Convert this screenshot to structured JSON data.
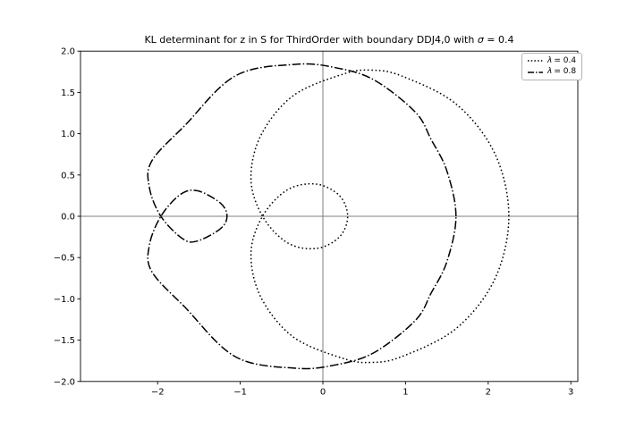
{
  "chart_data": {
    "type": "line",
    "title": "KL determinant for z in S for ThirdOrder with boundary DDJ4,0 with σ = 0.4",
    "title_parts": [
      {
        "text": "KL determinant for z in S for ThirdOrder with boundary DDJ4,0 with ",
        "italic": false
      },
      {
        "text": "σ",
        "italic": true
      },
      {
        "text": " = 0.4",
        "italic": false
      }
    ],
    "xlabel": "",
    "ylabel": "",
    "xlim": [
      -2.93,
      3.1
    ],
    "ylim": [
      -2.0,
      2.0
    ],
    "aspect": "equal",
    "grid": false,
    "zero_lines": {
      "horizontal": true,
      "vertical": true,
      "color": "#7f7f7f"
    },
    "x_ticks": [
      {
        "v": -2,
        "label": "−2"
      },
      {
        "v": -1,
        "label": "−1"
      },
      {
        "v": 0,
        "label": "0"
      },
      {
        "v": 1,
        "label": "1"
      },
      {
        "v": 2,
        "label": "2"
      },
      {
        "v": 3,
        "label": "3"
      }
    ],
    "y_ticks": [
      {
        "v": -2.0,
        "label": "−2.0"
      },
      {
        "v": -1.5,
        "label": "−1.5"
      },
      {
        "v": -1.0,
        "label": "−1.0"
      },
      {
        "v": -0.5,
        "label": "−0.5"
      },
      {
        "v": 0.0,
        "label": "0.0"
      },
      {
        "v": 0.5,
        "label": "0.5"
      },
      {
        "v": 1.0,
        "label": "1.0"
      },
      {
        "v": 1.5,
        "label": "1.5"
      },
      {
        "v": 2.0,
        "label": "2.0"
      }
    ],
    "legend": {
      "location": "upper right",
      "entries": [
        {
          "symbol": "λ",
          "value": "= 0.4",
          "linestyle": "dotted"
        },
        {
          "symbol": "λ",
          "value": "= 0.8",
          "linestyle": "dashdot"
        }
      ]
    },
    "series": [
      {
        "name": "lambda = 0.4",
        "linestyle": "dotted",
        "color": "#000000",
        "closed": true,
        "points": [
          [
            2.25,
            0
          ],
          [
            2.08,
            0.76
          ],
          [
            1.61,
            1.36
          ],
          [
            0.95,
            1.7
          ],
          [
            0.58,
            1.77
          ],
          [
            0.24,
            1.72
          ],
          [
            -0.36,
            1.46
          ],
          [
            -0.75,
            0.98
          ],
          [
            -0.87,
            0.45
          ],
          [
            -0.73,
            0
          ],
          [
            -0.43,
            -0.32
          ],
          [
            -0.08,
            -0.39
          ],
          [
            0.2,
            -0.25
          ],
          [
            0.3,
            0
          ],
          [
            0.2,
            0.25
          ],
          [
            -0.08,
            0.39
          ],
          [
            -0.43,
            0.32
          ],
          [
            -0.73,
            0
          ],
          [
            -0.87,
            -0.45
          ],
          [
            -0.75,
            -0.98
          ],
          [
            -0.36,
            -1.46
          ],
          [
            0.24,
            -1.72
          ],
          [
            0.58,
            -1.77
          ],
          [
            0.95,
            -1.7
          ],
          [
            1.61,
            -1.36
          ],
          [
            2.08,
            -0.76
          ]
        ]
      },
      {
        "name": "lambda = 0.8",
        "linestyle": "dashdot",
        "color": "#000000",
        "closed": true,
        "points": [
          [
            1.61,
            0
          ],
          [
            1.5,
            0.55
          ],
          [
            1.31,
            0.93
          ],
          [
            1.12,
            1.26
          ],
          [
            0.62,
            1.65
          ],
          [
            0.15,
            1.8
          ],
          [
            -0.33,
            1.84
          ],
          [
            -1.06,
            1.7
          ],
          [
            -1.67,
            1.1
          ],
          [
            -2.07,
            0.67
          ],
          [
            -2.1,
            0.35
          ],
          [
            -1.96,
            0
          ],
          [
            -1.7,
            -0.27
          ],
          [
            -1.52,
            -0.3
          ],
          [
            -1.24,
            -0.15
          ],
          [
            -1.16,
            0
          ],
          [
            -1.24,
            0.16
          ],
          [
            -1.52,
            0.31
          ],
          [
            -1.73,
            0.26
          ],
          [
            -1.96,
            0
          ],
          [
            -2.1,
            -0.35
          ],
          [
            -2.07,
            -0.67
          ],
          [
            -1.67,
            -1.1
          ],
          [
            -1.06,
            -1.7
          ],
          [
            -0.33,
            -1.84
          ],
          [
            0.15,
            -1.8
          ],
          [
            0.62,
            -1.65
          ],
          [
            1.12,
            -1.26
          ],
          [
            1.31,
            -0.93
          ],
          [
            1.5,
            -0.55
          ]
        ]
      }
    ]
  }
}
